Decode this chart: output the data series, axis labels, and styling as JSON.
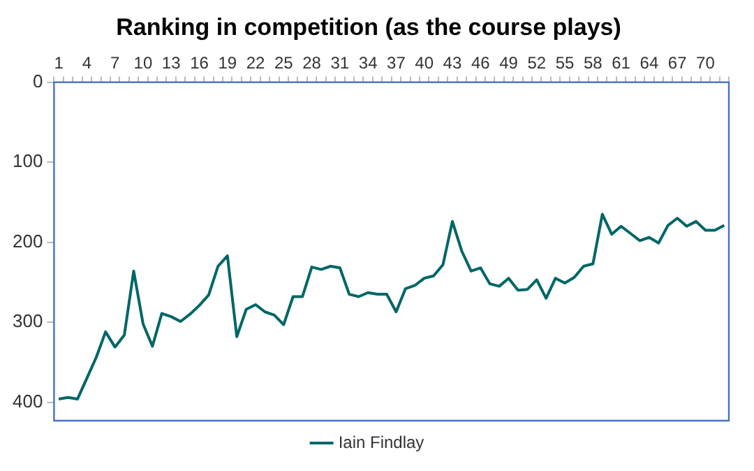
{
  "chart_data": {
    "type": "line",
    "title": "Ranking in competition (as the course plays)",
    "categories": [
      "1",
      null,
      null,
      "4",
      null,
      null,
      "7",
      null,
      null,
      "10",
      null,
      null,
      "13",
      null,
      null,
      "16",
      null,
      null,
      "19",
      null,
      null,
      "22",
      null,
      null,
      "25",
      null,
      null,
      "28",
      null,
      null,
      "31",
      null,
      null,
      "34",
      null,
      null,
      "37",
      null,
      null,
      "40",
      null,
      null,
      "43",
      null,
      null,
      "46",
      null,
      null,
      "49",
      null,
      null,
      "52",
      null,
      null,
      "55",
      null,
      null,
      "58",
      null,
      null,
      "61",
      null,
      null,
      "64",
      null,
      null,
      "67",
      null,
      null,
      "70",
      null,
      null
    ],
    "series": [
      {
        "name": "Iain Findlay",
        "color": "#006666",
        "values": [
          396,
          394,
          396,
          370,
          344,
          312,
          331,
          316,
          236,
          302,
          330,
          289,
          293,
          299,
          290,
          279,
          266,
          230,
          217,
          318,
          284,
          278,
          287,
          291,
          303,
          268,
          268,
          231,
          234,
          230,
          232,
          265,
          268,
          263,
          265,
          265,
          287,
          258,
          254,
          245,
          242,
          228,
          174,
          211,
          236,
          232,
          252,
          255,
          245,
          260,
          259,
          247,
          270,
          245,
          251,
          244,
          230,
          227,
          165,
          190,
          180,
          189,
          198,
          194,
          201,
          179,
          170,
          180,
          174,
          185,
          185,
          179
        ]
      }
    ],
    "ylim": [
      423,
      0
    ],
    "yticks": [
      0,
      100,
      200,
      300,
      400
    ],
    "grid": false,
    "legend": "bottom",
    "marker": "none",
    "line_style": "solid"
  }
}
